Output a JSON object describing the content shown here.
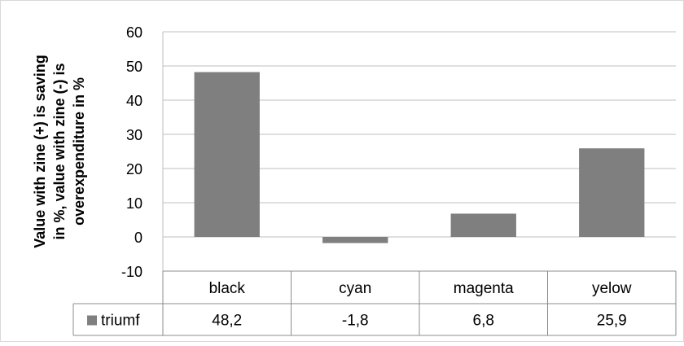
{
  "chart_data": {
    "type": "bar",
    "title": "",
    "ylabel_lines": [
      "Value with zine (+) is  saving",
      "in %, value with zine (-) is",
      "overexpenditure in %"
    ],
    "xlabel": "",
    "categories": [
      "black",
      "cyan",
      "magenta",
      "yelow"
    ],
    "ylim": [
      -10,
      60
    ],
    "yticks": [
      -10,
      0,
      10,
      20,
      30,
      40,
      50,
      60
    ],
    "grid": true,
    "series": [
      {
        "name": "triumf",
        "values": [
          48.2,
          -1.8,
          6.8,
          25.9
        ],
        "color": "#7f7f7f"
      }
    ],
    "data_table": {
      "rows": [
        {
          "series": "triumf",
          "cells": [
            "48,2",
            "-1,8",
            "6,8",
            "25,9"
          ]
        }
      ]
    }
  }
}
